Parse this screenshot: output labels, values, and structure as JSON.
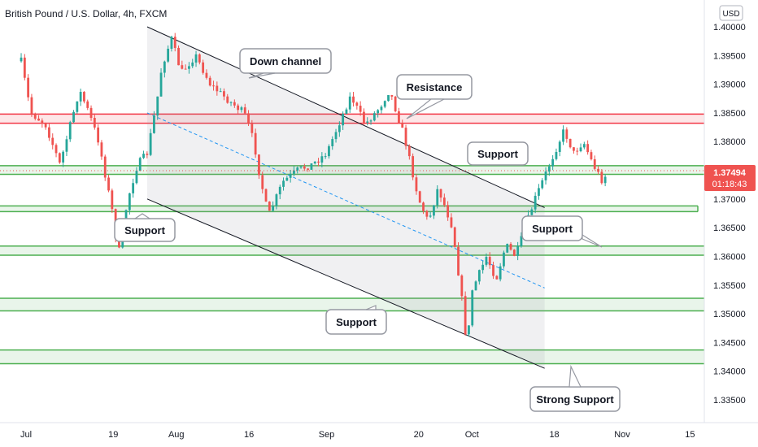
{
  "header": {
    "title": "British Pound / U.S. Dollar, 4h, FXCM",
    "currency": "USD"
  },
  "price_tag": {
    "price": "1.37494",
    "timer": "01:18:43",
    "color": "#ef5350"
  },
  "colors": {
    "up": "#26a69a",
    "down": "#ef5350",
    "support_zone": "#4caf50",
    "resistance_zone": "#f23645",
    "channel": "#131722",
    "midline": "#2196f3"
  },
  "chart_data": {
    "type": "candlestick",
    "title": "British Pound / U.S. Dollar, 4h, FXCM",
    "ylim": [
      1.331,
      1.404
    ],
    "yticks": [
      "1.40000",
      "1.39500",
      "1.39000",
      "1.38500",
      "1.38000",
      "1.37500",
      "1.37000",
      "1.36500",
      "1.36000",
      "1.35500",
      "1.35000",
      "1.34500",
      "1.34000",
      "1.33500"
    ],
    "ytick_values": [
      1.4,
      1.395,
      1.39,
      1.385,
      1.38,
      1.375,
      1.37,
      1.365,
      1.36,
      1.355,
      1.35,
      1.345,
      1.34,
      1.335
    ],
    "xticks": [
      "Jul",
      "19",
      "Aug",
      "16",
      "Sep",
      "20",
      "Oct",
      "18",
      "Nov",
      "15"
    ],
    "xtick_dates": [
      "2021-07-01",
      "2021-07-19",
      "2021-08-01",
      "2021-08-16",
      "2021-09-01",
      "2021-09-20",
      "2021-10-01",
      "2021-10-18",
      "2021-11-01",
      "2021-11-15"
    ],
    "price_path": [
      [
        "2021-06-30",
        1.394
      ],
      [
        "2021-07-02",
        1.385
      ],
      [
        "2021-07-05",
        1.383
      ],
      [
        "2021-07-08",
        1.376
      ],
      [
        "2021-07-12",
        1.389
      ],
      [
        "2021-07-14",
        1.385
      ],
      [
        "2021-07-16",
        1.38
      ],
      [
        "2021-07-19",
        1.367
      ],
      [
        "2021-07-20",
        1.36
      ],
      [
        "2021-07-22",
        1.37
      ],
      [
        "2021-07-24",
        1.376
      ],
      [
        "2021-07-26",
        1.378
      ],
      [
        "2021-07-28",
        1.387
      ],
      [
        "2021-07-29",
        1.393
      ],
      [
        "2021-07-31",
        1.398
      ],
      [
        "2021-08-02",
        1.392
      ],
      [
        "2021-08-05",
        1.395
      ],
      [
        "2021-08-08",
        1.39
      ],
      [
        "2021-08-12",
        1.387
      ],
      [
        "2021-08-15",
        1.385
      ],
      [
        "2021-08-17",
        1.38
      ],
      [
        "2021-08-18",
        1.375
      ],
      [
        "2021-08-20",
        1.367
      ],
      [
        "2021-08-23",
        1.373
      ],
      [
        "2021-08-26",
        1.375
      ],
      [
        "2021-08-29",
        1.376
      ],
      [
        "2021-09-01",
        1.378
      ],
      [
        "2021-09-04",
        1.384
      ],
      [
        "2021-09-06",
        1.388
      ],
      [
        "2021-09-09",
        1.383
      ],
      [
        "2021-09-12",
        1.386
      ],
      [
        "2021-09-14",
        1.389
      ],
      [
        "2021-09-17",
        1.381
      ],
      [
        "2021-09-20",
        1.37
      ],
      [
        "2021-09-22",
        1.366
      ],
      [
        "2021-09-24",
        1.372
      ],
      [
        "2021-09-27",
        1.365
      ],
      [
        "2021-09-29",
        1.352
      ],
      [
        "2021-09-30",
        1.344
      ],
      [
        "2021-10-01",
        1.354
      ],
      [
        "2021-10-04",
        1.36
      ],
      [
        "2021-10-06",
        1.356
      ],
      [
        "2021-10-08",
        1.362
      ],
      [
        "2021-10-10",
        1.36
      ],
      [
        "2021-10-12",
        1.365
      ],
      [
        "2021-10-14",
        1.37
      ],
      [
        "2021-10-16",
        1.374
      ],
      [
        "2021-10-18",
        1.378
      ],
      [
        "2021-10-20",
        1.382
      ],
      [
        "2021-10-22",
        1.378
      ],
      [
        "2021-10-24",
        1.38
      ],
      [
        "2021-10-26",
        1.376
      ],
      [
        "2021-10-28",
        1.373
      ],
      [
        "2021-10-29",
        1.375
      ]
    ],
    "last_price": 1.37494,
    "support_zones": [
      [
        1.3743,
        1.3758
      ],
      [
        1.3678,
        1.3688
      ],
      [
        1.3602,
        1.3618
      ],
      [
        1.3505,
        1.3527
      ],
      [
        1.3413,
        1.3437
      ]
    ],
    "resistance_zone": [
      1.3832,
      1.3848
    ],
    "down_channel": {
      "upper": [
        [
          "2021-07-26",
          1.4
        ],
        [
          "2021-10-16",
          1.3685
        ]
      ],
      "lower": [
        [
          "2021-07-26",
          1.37
        ],
        [
          "2021-10-16",
          1.3405
        ]
      ],
      "mid": [
        [
          "2021-07-26",
          1.385
        ],
        [
          "2021-10-16",
          1.3545
        ]
      ]
    },
    "annotations": [
      {
        "text": "Down channel"
      },
      {
        "text": "Resistance"
      },
      {
        "text": "Support"
      },
      {
        "text": "Support"
      },
      {
        "text": "Support"
      },
      {
        "text": "Support"
      },
      {
        "text": "Strong Support"
      }
    ],
    "grid": false,
    "legend": "none"
  }
}
